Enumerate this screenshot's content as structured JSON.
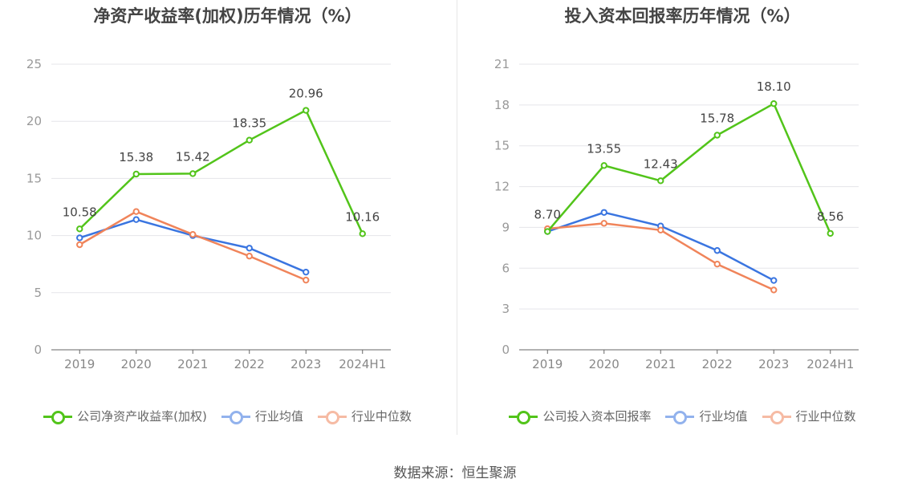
{
  "source": "数据来源：恒生聚源",
  "chart_data": [
    {
      "type": "line",
      "title": "净资产收益率(加权)历年情况（%）",
      "categories": [
        "2019",
        "2020",
        "2021",
        "2022",
        "2023",
        "2024H1"
      ],
      "ylim": [
        0,
        25
      ],
      "yticks": [
        0,
        5,
        10,
        15,
        20,
        25
      ],
      "ytick_labels": [
        "0",
        "5",
        "10",
        "15",
        "20",
        "25"
      ],
      "grid": true,
      "legend_position": "bottom",
      "series": [
        {
          "name": "公司净资产收益率(加权)",
          "color": "#52c41a",
          "values": [
            10.58,
            15.38,
            15.42,
            18.35,
            20.96,
            10.16
          ],
          "labels": [
            "10.58",
            "15.38",
            "15.42",
            "18.35",
            "20.96",
            "10.16"
          ]
        },
        {
          "name": "行业均值",
          "color": "#3a75e0",
          "values": [
            9.8,
            11.4,
            10.0,
            8.9,
            6.8,
            null
          ]
        },
        {
          "name": "行业中位数",
          "color": "#f0845a",
          "values": [
            9.2,
            12.1,
            10.1,
            8.2,
            6.1,
            null
          ]
        }
      ]
    },
    {
      "type": "line",
      "title": "投入资本回报率历年情况（%）",
      "categories": [
        "2019",
        "2020",
        "2021",
        "2022",
        "2023",
        "2024H1"
      ],
      "ylim": [
        0,
        21
      ],
      "yticks": [
        0,
        3,
        6,
        9,
        12,
        15,
        18,
        21
      ],
      "ytick_labels": [
        "0",
        "3",
        "6",
        "9",
        "12",
        "15",
        "18",
        "21"
      ],
      "grid": true,
      "legend_position": "bottom",
      "series": [
        {
          "name": "公司投入资本回报率",
          "color": "#52c41a",
          "values": [
            8.7,
            13.55,
            12.43,
            15.78,
            18.1,
            8.56
          ],
          "labels": [
            "8.70",
            "13.55",
            "12.43",
            "15.78",
            "18.10",
            "8.56"
          ]
        },
        {
          "name": "行业均值",
          "color": "#3a75e0",
          "values": [
            8.7,
            10.1,
            9.1,
            7.3,
            5.1,
            null
          ]
        },
        {
          "name": "行业中位数",
          "color": "#f0845a",
          "values": [
            8.9,
            9.3,
            8.8,
            6.3,
            4.4,
            null
          ]
        }
      ]
    }
  ]
}
